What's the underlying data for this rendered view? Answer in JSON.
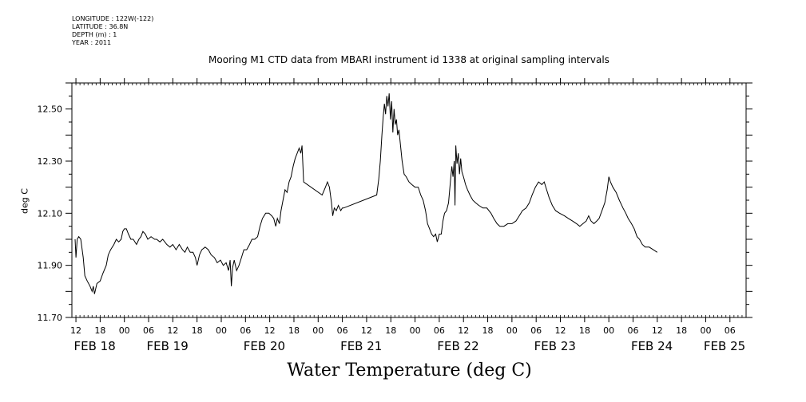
{
  "meta": {
    "longitude": "LONGITUDE : 122W(-122)",
    "latitude": "LATITUDE : 36.8N",
    "depth": "DEPTH (m) : 1",
    "year": "YEAR : 2011"
  },
  "colors": {
    "line": "#000000",
    "background": "#ffffff"
  },
  "chart_data": {
    "type": "line",
    "title": "Mooring M1 CTD data from MBARI instrument id 1338 at original sampling intervals",
    "xlabel": "Water Temperature (deg C)",
    "ylabel": "deg C",
    "ylim": [
      11.7,
      12.6
    ],
    "yticks": [
      "11.70",
      "11.90",
      "12.10",
      "12.30",
      "12.50"
    ],
    "x_unit": "hours since FEB 18 00:00 (2011)",
    "xlim": [
      11,
      178
    ],
    "hour_ticks": [
      {
        "h": 12,
        "label": "12"
      },
      {
        "h": 18,
        "label": "18"
      },
      {
        "h": 24,
        "label": "00"
      },
      {
        "h": 30,
        "label": "06"
      },
      {
        "h": 36,
        "label": "12"
      },
      {
        "h": 42,
        "label": "18"
      },
      {
        "h": 48,
        "label": "00"
      },
      {
        "h": 54,
        "label": "06"
      },
      {
        "h": 60,
        "label": "12"
      },
      {
        "h": 66,
        "label": "18"
      },
      {
        "h": 72,
        "label": "00"
      },
      {
        "h": 78,
        "label": "06"
      },
      {
        "h": 84,
        "label": "12"
      },
      {
        "h": 90,
        "label": "18"
      },
      {
        "h": 96,
        "label": "00"
      },
      {
        "h": 102,
        "label": "06"
      },
      {
        "h": 108,
        "label": "12"
      },
      {
        "h": 114,
        "label": "18"
      },
      {
        "h": 120,
        "label": "00"
      },
      {
        "h": 126,
        "label": "06"
      },
      {
        "h": 132,
        "label": "12"
      },
      {
        "h": 138,
        "label": "18"
      },
      {
        "h": 144,
        "label": "00"
      },
      {
        "h": 150,
        "label": "06"
      },
      {
        "h": 156,
        "label": "12"
      },
      {
        "h": 162,
        "label": "18"
      },
      {
        "h": 168,
        "label": "00"
      },
      {
        "h": 174,
        "label": "06"
      }
    ],
    "date_labels": [
      {
        "h": 11.5,
        "label": "FEB 18"
      },
      {
        "h": 29.5,
        "label": "FEB 19"
      },
      {
        "h": 53.5,
        "label": "FEB 20"
      },
      {
        "h": 77.5,
        "label": "FEB 21"
      },
      {
        "h": 101.5,
        "label": "FEB 22"
      },
      {
        "h": 125.5,
        "label": "FEB 23"
      },
      {
        "h": 149.5,
        "label": "FEB 24"
      },
      {
        "h": 167.5,
        "label": "FEB 25"
      }
    ],
    "series": [
      {
        "points": [
          [
            11.8,
            12.0
          ],
          [
            12.0,
            11.93
          ],
          [
            12.3,
            12.0
          ],
          [
            12.7,
            12.01
          ],
          [
            13.2,
            12.0
          ],
          [
            13.8,
            11.93
          ],
          [
            14.2,
            11.86
          ],
          [
            14.8,
            11.84
          ],
          [
            15.5,
            11.82
          ],
          [
            16.0,
            11.8
          ],
          [
            16.3,
            11.82
          ],
          [
            16.6,
            11.79
          ],
          [
            17.2,
            11.83
          ],
          [
            18.0,
            11.84
          ],
          [
            18.7,
            11.87
          ],
          [
            19.5,
            11.9
          ],
          [
            20.0,
            11.94
          ],
          [
            20.6,
            11.96
          ],
          [
            21.4,
            11.98
          ],
          [
            22.0,
            12.0
          ],
          [
            22.6,
            11.99
          ],
          [
            23.2,
            12.0
          ],
          [
            23.6,
            12.03
          ],
          [
            24.0,
            12.04
          ],
          [
            24.5,
            12.04
          ],
          [
            25.0,
            12.02
          ],
          [
            25.6,
            12.0
          ],
          [
            26.2,
            12.0
          ],
          [
            27.0,
            11.98
          ],
          [
            27.6,
            12.0
          ],
          [
            28.1,
            12.01
          ],
          [
            28.6,
            12.03
          ],
          [
            29.2,
            12.02
          ],
          [
            29.8,
            12.0
          ],
          [
            30.6,
            12.01
          ],
          [
            31.5,
            12.0
          ],
          [
            32.0,
            12.0
          ],
          [
            32.8,
            11.99
          ],
          [
            33.5,
            12.0
          ],
          [
            34.5,
            11.98
          ],
          [
            35.3,
            11.97
          ],
          [
            36.0,
            11.98
          ],
          [
            36.8,
            11.96
          ],
          [
            37.6,
            11.98
          ],
          [
            38.4,
            11.96
          ],
          [
            39.0,
            11.95
          ],
          [
            39.6,
            11.97
          ],
          [
            40.3,
            11.95
          ],
          [
            41.0,
            11.95
          ],
          [
            41.6,
            11.93
          ],
          [
            42.0,
            11.9
          ],
          [
            42.6,
            11.94
          ],
          [
            43.2,
            11.96
          ],
          [
            44.0,
            11.97
          ],
          [
            44.8,
            11.96
          ],
          [
            45.5,
            11.94
          ],
          [
            46.3,
            11.93
          ],
          [
            47.0,
            11.91
          ],
          [
            47.8,
            11.92
          ],
          [
            48.5,
            11.9
          ],
          [
            49.2,
            11.91
          ],
          [
            49.8,
            11.88
          ],
          [
            50.2,
            11.92
          ],
          [
            50.5,
            11.82
          ],
          [
            50.8,
            11.89
          ],
          [
            51.2,
            11.92
          ],
          [
            51.8,
            11.88
          ],
          [
            52.4,
            11.9
          ],
          [
            53.0,
            11.93
          ],
          [
            53.6,
            11.96
          ],
          [
            54.3,
            11.96
          ],
          [
            55.0,
            11.98
          ],
          [
            55.6,
            12.0
          ],
          [
            56.3,
            12.0
          ],
          [
            57.0,
            12.01
          ],
          [
            57.6,
            12.05
          ],
          [
            58.2,
            12.08
          ],
          [
            59.0,
            12.1
          ],
          [
            59.8,
            12.1
          ],
          [
            60.5,
            12.09
          ],
          [
            61.0,
            12.08
          ],
          [
            61.5,
            12.05
          ],
          [
            61.9,
            12.08
          ],
          [
            62.4,
            12.06
          ],
          [
            62.8,
            12.11
          ],
          [
            63.3,
            12.15
          ],
          [
            63.8,
            12.19
          ],
          [
            64.3,
            12.18
          ],
          [
            64.8,
            12.22
          ],
          [
            65.3,
            12.24
          ],
          [
            65.8,
            12.28
          ],
          [
            66.3,
            12.31
          ],
          [
            66.8,
            12.33
          ],
          [
            67.3,
            12.35
          ],
          [
            67.7,
            12.33
          ],
          [
            68.0,
            12.36
          ],
          [
            68.4,
            12.22
          ],
          [
            73.0,
            12.17
          ],
          [
            73.8,
            12.2
          ],
          [
            74.3,
            12.22
          ],
          [
            74.8,
            12.2
          ],
          [
            75.3,
            12.14
          ],
          [
            75.6,
            12.09
          ],
          [
            76.0,
            12.12
          ],
          [
            76.5,
            12.11
          ],
          [
            77.0,
            12.13
          ],
          [
            77.6,
            12.11
          ],
          [
            78.0,
            12.12
          ],
          [
            78.3,
            12.12
          ],
          [
            86.5,
            12.17
          ],
          [
            87.0,
            12.23
          ],
          [
            87.4,
            12.3
          ],
          [
            87.8,
            12.4
          ],
          [
            88.1,
            12.47
          ],
          [
            88.4,
            12.52
          ],
          [
            88.7,
            12.48
          ],
          [
            89.0,
            12.55
          ],
          [
            89.3,
            12.51
          ],
          [
            89.6,
            12.56
          ],
          [
            89.9,
            12.46
          ],
          [
            90.2,
            12.53
          ],
          [
            90.5,
            12.41
          ],
          [
            90.8,
            12.5
          ],
          [
            91.1,
            12.44
          ],
          [
            91.4,
            12.46
          ],
          [
            91.7,
            12.4
          ],
          [
            92.0,
            12.42
          ],
          [
            92.4,
            12.36
          ],
          [
            92.8,
            12.3
          ],
          [
            93.3,
            12.25
          ],
          [
            93.8,
            12.24
          ],
          [
            94.5,
            12.22
          ],
          [
            95.2,
            12.21
          ],
          [
            96.0,
            12.2
          ],
          [
            96.8,
            12.2
          ],
          [
            97.4,
            12.17
          ],
          [
            98.0,
            12.15
          ],
          [
            98.6,
            12.11
          ],
          [
            99.1,
            12.06
          ],
          [
            99.6,
            12.04
          ],
          [
            100.1,
            12.02
          ],
          [
            100.6,
            12.01
          ],
          [
            101.1,
            12.02
          ],
          [
            101.5,
            11.99
          ],
          [
            102.0,
            12.02
          ],
          [
            102.5,
            12.02
          ],
          [
            102.9,
            12.07
          ],
          [
            103.3,
            12.1
          ],
          [
            103.8,
            12.11
          ],
          [
            104.3,
            12.14
          ],
          [
            104.8,
            12.23
          ],
          [
            105.1,
            12.28
          ],
          [
            105.4,
            12.24
          ],
          [
            105.7,
            12.3
          ],
          [
            105.9,
            12.13
          ],
          [
            106.1,
            12.36
          ],
          [
            106.4,
            12.29
          ],
          [
            106.7,
            12.33
          ],
          [
            107.0,
            12.25
          ],
          [
            107.3,
            12.31
          ],
          [
            107.6,
            12.26
          ],
          [
            108.0,
            12.24
          ],
          [
            108.5,
            12.21
          ],
          [
            109.0,
            12.19
          ],
          [
            109.6,
            12.17
          ],
          [
            110.3,
            12.15
          ],
          [
            111.0,
            12.14
          ],
          [
            111.8,
            12.13
          ],
          [
            112.8,
            12.12
          ],
          [
            113.8,
            12.12
          ],
          [
            114.8,
            12.1
          ],
          [
            115.5,
            12.08
          ],
          [
            116.3,
            12.06
          ],
          [
            117.0,
            12.05
          ],
          [
            118.0,
            12.05
          ],
          [
            119.0,
            12.06
          ],
          [
            120.0,
            12.06
          ],
          [
            121.0,
            12.07
          ],
          [
            121.8,
            12.09
          ],
          [
            122.6,
            12.11
          ],
          [
            123.5,
            12.12
          ],
          [
            124.3,
            12.14
          ],
          [
            125.0,
            12.17
          ],
          [
            125.8,
            12.2
          ],
          [
            126.6,
            12.22
          ],
          [
            127.4,
            12.21
          ],
          [
            128.0,
            12.22
          ],
          [
            128.6,
            12.19
          ],
          [
            129.2,
            12.16
          ],
          [
            130.0,
            12.13
          ],
          [
            130.8,
            12.11
          ],
          [
            131.8,
            12.1
          ],
          [
            133.0,
            12.09
          ],
          [
            134.0,
            12.08
          ],
          [
            135.0,
            12.07
          ],
          [
            136.0,
            12.06
          ],
          [
            136.8,
            12.05
          ],
          [
            137.6,
            12.06
          ],
          [
            138.4,
            12.07
          ],
          [
            139.0,
            12.09
          ],
          [
            139.6,
            12.07
          ],
          [
            140.3,
            12.06
          ],
          [
            141.0,
            12.07
          ],
          [
            141.6,
            12.08
          ],
          [
            142.3,
            12.11
          ],
          [
            143.0,
            12.14
          ],
          [
            143.6,
            12.19
          ],
          [
            144.0,
            12.24
          ],
          [
            144.4,
            12.22
          ],
          [
            145.0,
            12.2
          ],
          [
            145.8,
            12.18
          ],
          [
            146.6,
            12.15
          ],
          [
            147.5,
            12.12
          ],
          [
            148.2,
            12.1
          ],
          [
            148.8,
            12.08
          ],
          [
            149.6,
            12.06
          ],
          [
            150.3,
            12.04
          ],
          [
            151.0,
            12.01
          ],
          [
            151.6,
            12.0
          ],
          [
            152.3,
            11.98
          ],
          [
            153.0,
            11.97
          ],
          [
            154.0,
            11.97
          ],
          [
            155.0,
            11.96
          ],
          [
            156.0,
            11.95
          ]
        ]
      }
    ]
  }
}
